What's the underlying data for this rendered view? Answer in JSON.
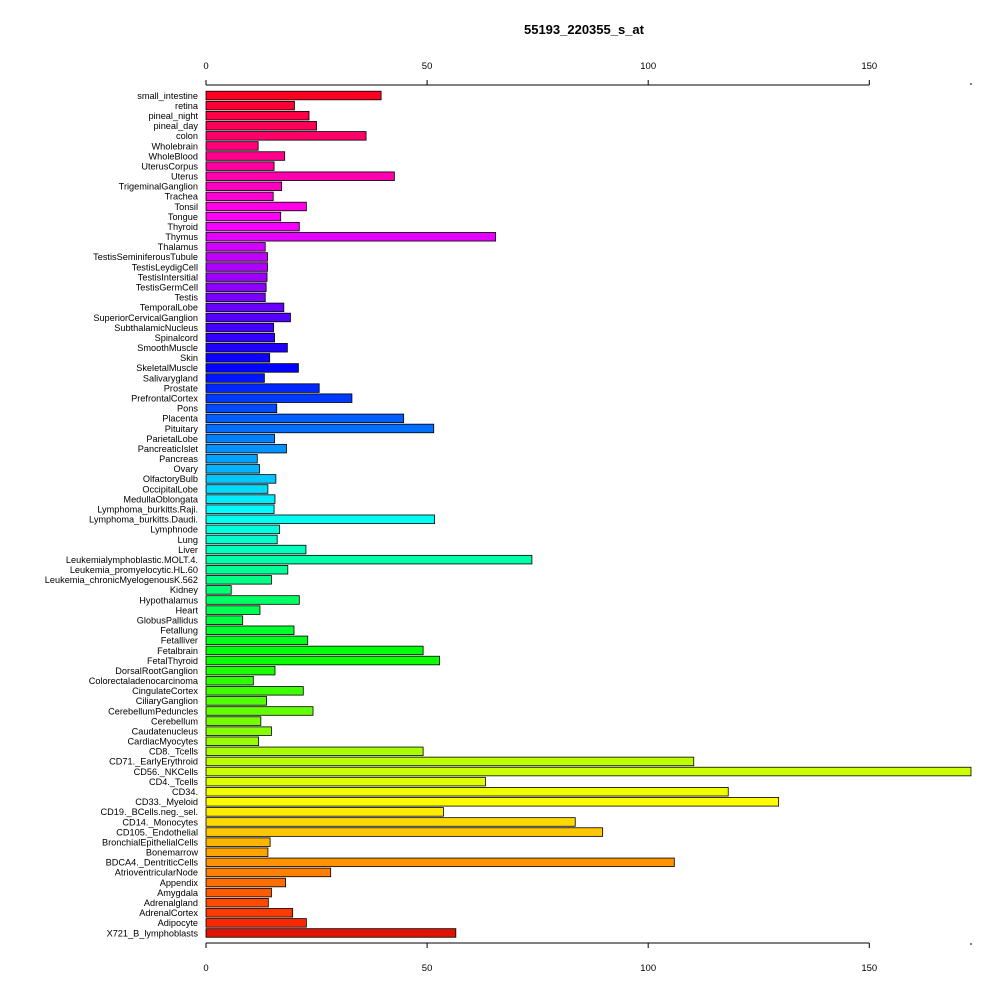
{
  "chart_data": {
    "type": "bar",
    "orientation": "horizontal",
    "title": "55193_220355_s_at",
    "xlabel": "",
    "ylabel": "",
    "xlim": [
      0,
      173
    ],
    "x_ticks": [
      0,
      50,
      100,
      150
    ],
    "axes": "top-and-bottom",
    "grid": false,
    "legend": "none",
    "categories": [
      "small_intestine",
      "retina",
      "pineal_night",
      "pineal_day",
      "colon",
      "Wholebrain",
      "WholeBlood",
      "UterusCorpus",
      "Uterus",
      "TrigeminalGanglion",
      "Trachea",
      "Tonsil",
      "Tongue",
      "Thyroid",
      "Thymus",
      "Thalamus",
      "TestisSeminiferousTubule",
      "TestisLeydigCell",
      "TestisIntersitial",
      "TestisGermCell",
      "Testis",
      "TemporalLobe",
      "SuperiorCervicalGanglion",
      "SubthalamicNucleus",
      "Spinalcord",
      "SmoothMuscle",
      "Skin",
      "SkeletalMuscle",
      "Salivarygland",
      "Prostate",
      "PrefrontalCortex",
      "Pons",
      "Placenta",
      "Pituitary",
      "ParietalLobe",
      "PancreaticIslet",
      "Pancreas",
      "Ovary",
      "OlfactoryBulb",
      "OccipitalLobe",
      "MedullaOblongata",
      "Lymphoma_burkitts.Raji.",
      "Lymphoma_burkitts.Daudi.",
      "Lymphnode",
      "Lung",
      "Liver",
      "Leukemialymphoblastic.MOLT.4.",
      "Leukemia_promyelocytic.HL.60",
      "Leukemia_chronicMyelogenousK.562",
      "Kidney",
      "Hypothalamus",
      "Heart",
      "GlobusPallidus",
      "Fetallung",
      "Fetalliver",
      "Fetalbrain",
      "FetalThyroid",
      "DorsalRootGanglion",
      "Colorectaladenocarcinoma",
      "CingulateCortex",
      "CiliaryGanglion",
      "CerebellumPeduncles",
      "Cerebellum",
      "Caudatenucleus",
      "CardiacMyocytes",
      "CD8._Tcells",
      "CD71._EarlyErythroid",
      "CD56._NKCells",
      "CD4._Tcells",
      "CD34.",
      "CD33._Myeloid",
      "CD19._BCells.neg._sel.",
      "CD14._Monocytes",
      "CD105._Endothelial",
      "BronchialEpithelialCells",
      "Bonemarrow",
      "BDCA4._DentriticCells",
      "AtrioventricularNode",
      "Appendix",
      "Amygdala",
      "Adrenalgland",
      "AdrenalCortex",
      "Adipocyte",
      "X721_B_lymphoblasts"
    ],
    "values": [
      39.6,
      20.0,
      23.3,
      25.0,
      36.2,
      11.8,
      17.8,
      15.4,
      42.6,
      17.1,
      15.2,
      22.7,
      16.9,
      21.1,
      65.5,
      13.4,
      13.9,
      13.9,
      13.8,
      13.6,
      13.4,
      17.6,
      19.1,
      15.3,
      15.5,
      18.4,
      14.4,
      20.9,
      13.2,
      25.6,
      33.0,
      16.0,
      44.7,
      51.5,
      15.5,
      18.2,
      11.6,
      12.1,
      15.8,
      14.0,
      15.6,
      15.4,
      51.7,
      16.6,
      16.1,
      22.6,
      73.7,
      18.5,
      14.8,
      5.7,
      21.1,
      12.2,
      8.3,
      19.9,
      23.0,
      49.1,
      52.8,
      15.6,
      10.7,
      22.0,
      13.7,
      24.2,
      12.4,
      14.8,
      11.9,
      49.1,
      110.3,
      173.0,
      63.2,
      118.1,
      129.5,
      53.7,
      83.5,
      89.7,
      14.5,
      14.0,
      105.9,
      28.2,
      18.0,
      14.8,
      14.1,
      19.6,
      22.7,
      56.5
    ]
  }
}
